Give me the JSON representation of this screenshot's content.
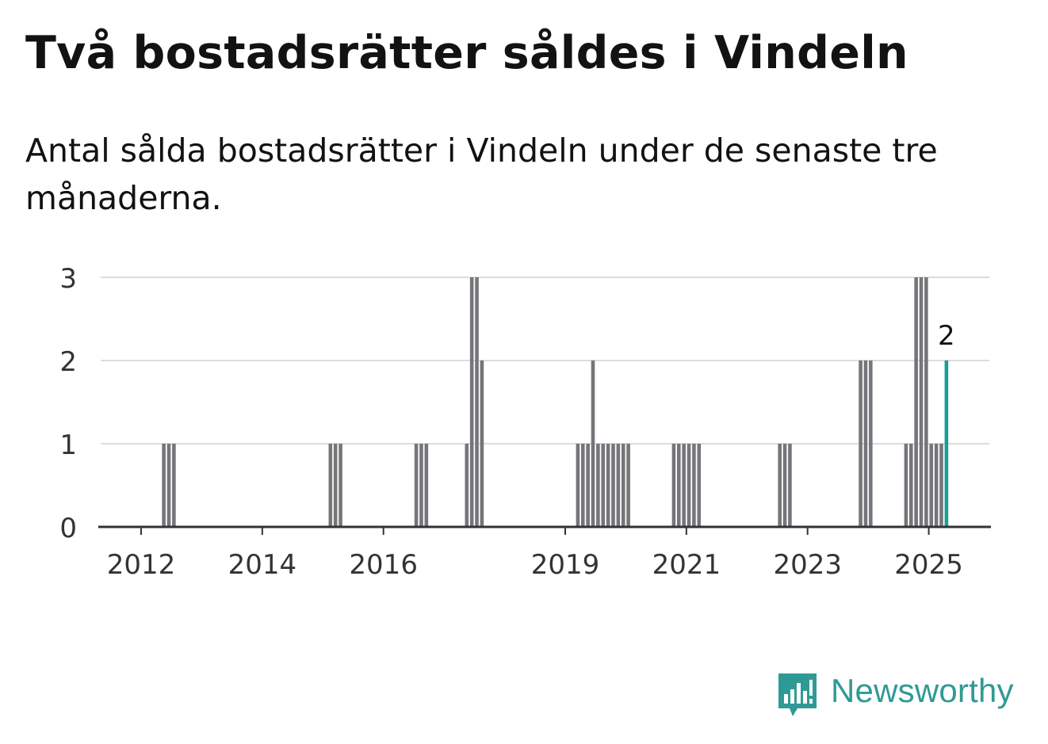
{
  "title": "Två bostadsrätter såldes i Vindeln",
  "subtitle": "Antal sålda bostadsrätter i Vindeln under de senaste tre månaderna.",
  "brand": {
    "name": "Newsworthy",
    "icon": "newsworthy-logo-icon",
    "color": "#2f9a95"
  },
  "colors": {
    "bar": "#75757a",
    "highlight": "#1a9e96",
    "grid": "#dcdcdc",
    "axis": "#333333"
  },
  "chart_data": {
    "type": "bar",
    "title": "Två bostadsrätter såldes i Vindeln",
    "xlabel": "",
    "ylabel": "",
    "ylim": [
      0,
      3
    ],
    "yticks": [
      "0",
      "1",
      "2",
      "3"
    ],
    "xticks": [
      "2012",
      "2014",
      "2016",
      "2019",
      "2021",
      "2023",
      "2025"
    ],
    "grid": true,
    "annotation": {
      "x": "2025-04",
      "label": "2"
    },
    "series": [
      {
        "points": [
          {
            "x": "2012-05",
            "y": 1
          },
          {
            "x": "2012-06",
            "y": 1
          },
          {
            "x": "2012-07",
            "y": 1
          },
          {
            "x": "2015-02",
            "y": 1
          },
          {
            "x": "2015-03",
            "y": 1
          },
          {
            "x": "2015-04",
            "y": 1
          },
          {
            "x": "2016-07",
            "y": 1
          },
          {
            "x": "2016-08",
            "y": 1
          },
          {
            "x": "2016-09",
            "y": 1
          },
          {
            "x": "2017-05",
            "y": 1
          },
          {
            "x": "2017-06",
            "y": 3
          },
          {
            "x": "2017-07",
            "y": 3
          },
          {
            "x": "2017-08",
            "y": 2
          },
          {
            "x": "2019-03",
            "y": 1
          },
          {
            "x": "2019-04",
            "y": 1
          },
          {
            "x": "2019-05",
            "y": 1
          },
          {
            "x": "2019-06",
            "y": 2
          },
          {
            "x": "2019-07",
            "y": 1
          },
          {
            "x": "2019-08",
            "y": 1
          },
          {
            "x": "2019-09",
            "y": 1
          },
          {
            "x": "2019-10",
            "y": 1
          },
          {
            "x": "2019-11",
            "y": 1
          },
          {
            "x": "2019-12",
            "y": 1
          },
          {
            "x": "2020-01",
            "y": 1
          },
          {
            "x": "2020-10",
            "y": 1
          },
          {
            "x": "2020-11",
            "y": 1
          },
          {
            "x": "2020-12",
            "y": 1
          },
          {
            "x": "2021-01",
            "y": 1
          },
          {
            "x": "2021-02",
            "y": 1
          },
          {
            "x": "2021-03",
            "y": 1
          },
          {
            "x": "2022-07",
            "y": 1
          },
          {
            "x": "2022-08",
            "y": 1
          },
          {
            "x": "2022-09",
            "y": 1
          },
          {
            "x": "2023-11",
            "y": 2
          },
          {
            "x": "2023-12",
            "y": 2
          },
          {
            "x": "2024-01",
            "y": 2
          },
          {
            "x": "2024-08",
            "y": 1
          },
          {
            "x": "2024-09",
            "y": 1
          },
          {
            "x": "2024-10",
            "y": 3
          },
          {
            "x": "2024-11",
            "y": 3
          },
          {
            "x": "2024-12",
            "y": 3
          },
          {
            "x": "2025-01",
            "y": 1
          },
          {
            "x": "2025-02",
            "y": 1
          },
          {
            "x": "2025-03",
            "y": 1
          },
          {
            "x": "2025-04",
            "y": 2,
            "highlight": true
          }
        ]
      }
    ]
  }
}
